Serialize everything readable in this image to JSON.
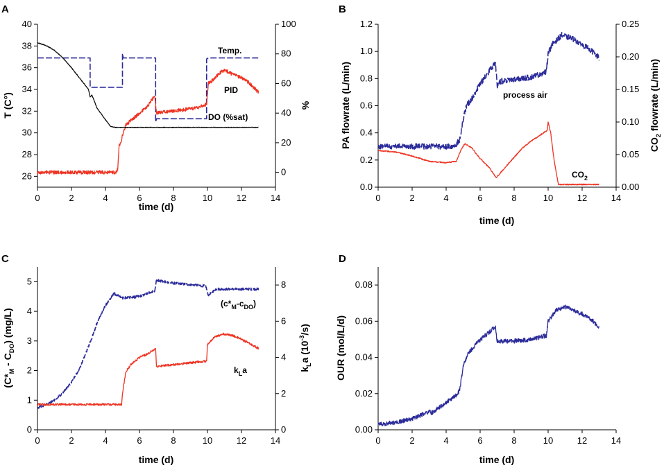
{
  "colors": {
    "blue": "#2b2b9a",
    "red": "#ee3322",
    "black": "#111111",
    "axis": "#000000"
  },
  "chart_data": [
    {
      "panel": "A",
      "type": "line",
      "xlabel": "time (d)",
      "ylabel_left": "T (C°)",
      "ylabel_right": "%",
      "xlim": [
        0,
        14
      ],
      "xticks": [
        0,
        2,
        4,
        6,
        8,
        10,
        12,
        14
      ],
      "ylim_left": [
        25,
        40
      ],
      "yticks_left": [
        26,
        28,
        30,
        32,
        34,
        36,
        38,
        40
      ],
      "ylim_right": [
        -10,
        100
      ],
      "yticks_right": [
        0,
        20,
        40,
        60,
        80,
        100
      ],
      "annotations": {
        "temp": "Temp.",
        "pid": "PID",
        "do_main": "DO (%sat)"
      },
      "series": [
        {
          "name": "Temp.",
          "axis": "left",
          "style": "dashed",
          "color": "blue",
          "points": [
            [
              0,
              36.9
            ],
            [
              3.1,
              36.9
            ],
            [
              3.1,
              34.2
            ],
            [
              5.0,
              34.2
            ],
            [
              5.0,
              37.3
            ],
            [
              5.05,
              36.9
            ],
            [
              6.95,
              36.9
            ],
            [
              6.95,
              31.0
            ],
            [
              7.0,
              31.3
            ],
            [
              9.95,
              31.3
            ],
            [
              9.95,
              36.8
            ],
            [
              10.05,
              36.9
            ],
            [
              13,
              36.9
            ]
          ]
        },
        {
          "name": "PID",
          "axis": "right",
          "style": "solid",
          "color": "red",
          "noise": 1.2,
          "points": [
            [
              0,
              0
            ],
            [
              4.6,
              0
            ],
            [
              4.72,
              2
            ],
            [
              4.8,
              18
            ],
            [
              4.9,
              20
            ],
            [
              5.0,
              25
            ],
            [
              5.2,
              32
            ],
            [
              5.5,
              35
            ],
            [
              6.0,
              40
            ],
            [
              6.5,
              45
            ],
            [
              6.9,
              52
            ],
            [
              7.0,
              40
            ],
            [
              7.5,
              41
            ],
            [
              8.5,
              42
            ],
            [
              9.5,
              44
            ],
            [
              9.95,
              46
            ],
            [
              10.05,
              60
            ],
            [
              10.3,
              62
            ],
            [
              10.7,
              67
            ],
            [
              11.0,
              69
            ],
            [
              11.5,
              66
            ],
            [
              12.0,
              64
            ],
            [
              12.5,
              60
            ],
            [
              13,
              54
            ]
          ]
        },
        {
          "name": "DO (%sat)",
          "axis": "left",
          "style": "solid",
          "color": "black",
          "noise": 0.03,
          "points": [
            [
              0,
              38.3
            ],
            [
              0.5,
              38.05
            ],
            [
              1.0,
              37.6
            ],
            [
              1.5,
              36.9
            ],
            [
              2.0,
              36.0
            ],
            [
              2.5,
              35.0
            ],
            [
              3.0,
              34.0
            ],
            [
              3.1,
              33.3
            ],
            [
              3.2,
              33.5
            ],
            [
              3.5,
              32.3
            ],
            [
              4.0,
              31.2
            ],
            [
              4.3,
              30.6
            ],
            [
              4.6,
              30.5
            ],
            [
              13,
              30.5
            ]
          ]
        }
      ]
    },
    {
      "panel": "B",
      "type": "line",
      "xlabel": "time (d)",
      "ylabel_left": "PA flowrate (L/min)",
      "ylabel_right_main": "CO",
      "ylabel_right_sub": "2",
      "ylabel_right_tail": " flowrate (L/min)",
      "xlim": [
        0,
        14
      ],
      "xticks": [
        0,
        2,
        4,
        6,
        8,
        10,
        12,
        14
      ],
      "ylim_left": [
        0,
        1.2
      ],
      "yticks_left": [
        "0.0",
        "0.2",
        "0.4",
        "0.6",
        "0.8",
        "1.0",
        "1.2"
      ],
      "ylim_right": [
        0,
        0.25
      ],
      "yticks_right": [
        "0.00",
        "0.05",
        "0.10",
        "0.15",
        "0.20",
        "0.25"
      ],
      "annotations": {
        "process_air": "process air",
        "co2_main": "CO",
        "co2_sub": "2"
      },
      "series": [
        {
          "name": "process air",
          "axis": "left",
          "style": "dashed",
          "color": "blue",
          "noise": 0.02,
          "points": [
            [
              0,
              0.3
            ],
            [
              4.5,
              0.3
            ],
            [
              4.8,
              0.35
            ],
            [
              5.0,
              0.5
            ],
            [
              5.2,
              0.6
            ],
            [
              5.5,
              0.65
            ],
            [
              6.0,
              0.76
            ],
            [
              6.5,
              0.85
            ],
            [
              6.9,
              0.92
            ],
            [
              7.0,
              0.74
            ],
            [
              7.2,
              0.78
            ],
            [
              8,
              0.79
            ],
            [
              9,
              0.81
            ],
            [
              9.9,
              0.85
            ],
            [
              10.0,
              0.99
            ],
            [
              10.3,
              1.06
            ],
            [
              10.8,
              1.12
            ],
            [
              11.5,
              1.09
            ],
            [
              12.0,
              1.05
            ],
            [
              12.5,
              1.01
            ],
            [
              13,
              0.95
            ]
          ]
        },
        {
          "name": "CO2",
          "axis": "left",
          "style": "solid",
          "color": "red",
          "noise": 0.004,
          "points": [
            [
              0,
              0.27
            ],
            [
              1,
              0.26
            ],
            [
              2,
              0.23
            ],
            [
              3,
              0.19
            ],
            [
              4,
              0.18
            ],
            [
              4.6,
              0.19
            ],
            [
              4.9,
              0.28
            ],
            [
              5.1,
              0.32
            ],
            [
              5.5,
              0.29
            ],
            [
              6,
              0.21
            ],
            [
              6.5,
              0.15
            ],
            [
              6.95,
              0.07
            ],
            [
              7.5,
              0.15
            ],
            [
              8,
              0.22
            ],
            [
              8.5,
              0.29
            ],
            [
              9,
              0.34
            ],
            [
              9.5,
              0.38
            ],
            [
              9.95,
              0.42
            ],
            [
              10.0,
              0.48
            ],
            [
              10.15,
              0.4
            ],
            [
              10.35,
              0.2
            ],
            [
              10.6,
              0.02
            ],
            [
              13,
              0.02
            ]
          ]
        }
      ]
    },
    {
      "panel": "C",
      "type": "line",
      "xlabel": "time (d)",
      "ylabel_left": "(C*M - CDO) (mg/L)",
      "ylabel_right": "kLa (10-3/s)",
      "xlim": [
        0,
        14
      ],
      "xticks": [
        0,
        2,
        4,
        6,
        8,
        10,
        12,
        14
      ],
      "ylim_left": [
        0,
        5.5
      ],
      "yticks_left": [
        0,
        1,
        2,
        3,
        4,
        5
      ],
      "ylim_right": [
        0,
        9.0
      ],
      "yticks_right": [
        0,
        2,
        4,
        6,
        8
      ],
      "annotations": {
        "cm_cdo": "(c*M-cDO)",
        "kla": "kLa"
      },
      "series": [
        {
          "name": "(c*M-cDO)",
          "axis": "left",
          "style": "dashed",
          "color": "blue",
          "noise": 0.04,
          "points": [
            [
              0,
              0.75
            ],
            [
              0.5,
              0.85
            ],
            [
              1,
              1.0
            ],
            [
              1.5,
              1.25
            ],
            [
              2,
              1.6
            ],
            [
              2.5,
              2.1
            ],
            [
              3,
              2.8
            ],
            [
              3.2,
              3.1
            ],
            [
              3.5,
              3.6
            ],
            [
              4,
              4.2
            ],
            [
              4.5,
              4.6
            ],
            [
              5,
              4.45
            ],
            [
              6,
              4.5
            ],
            [
              6.9,
              4.7
            ],
            [
              7.0,
              5.05
            ],
            [
              8,
              4.95
            ],
            [
              9,
              4.9
            ],
            [
              9.9,
              4.85
            ],
            [
              10.05,
              4.55
            ],
            [
              10.5,
              4.75
            ],
            [
              13,
              4.75
            ]
          ]
        },
        {
          "name": "kLa",
          "axis": "right",
          "style": "solid",
          "color": "red",
          "noise": 0.06,
          "points": [
            [
              0,
              1.4
            ],
            [
              3,
              1.4
            ],
            [
              4.95,
              1.4
            ],
            [
              5.0,
              2.0
            ],
            [
              5.2,
              3.2
            ],
            [
              5.5,
              3.6
            ],
            [
              6,
              4.0
            ],
            [
              6.5,
              4.2
            ],
            [
              6.95,
              4.5
            ],
            [
              7.0,
              3.5
            ],
            [
              8,
              3.6
            ],
            [
              9,
              3.7
            ],
            [
              9.95,
              3.8
            ],
            [
              10.0,
              4.7
            ],
            [
              10.4,
              5.1
            ],
            [
              10.9,
              5.3
            ],
            [
              11.5,
              5.2
            ],
            [
              12,
              5.0
            ],
            [
              13,
              4.5
            ]
          ]
        }
      ]
    },
    {
      "panel": "D",
      "type": "line",
      "xlabel": "time (d)",
      "ylabel_left": "OUR (mol/L/d)",
      "xlim": [
        0,
        14
      ],
      "xticks": [
        0,
        2,
        4,
        6,
        8,
        10,
        12,
        14
      ],
      "ylim_left": [
        0,
        0.09
      ],
      "yticks_left": [
        "0.00",
        "0.02",
        "0.04",
        "0.06",
        "0.08"
      ],
      "series": [
        {
          "name": "OUR",
          "axis": "left",
          "style": "solid",
          "color": "blue",
          "noise": 0.0012,
          "points": [
            [
              0,
              0.003
            ],
            [
              1,
              0.004
            ],
            [
              2,
              0.006
            ],
            [
              3,
              0.01
            ],
            [
              3.05,
              0.011
            ],
            [
              3.1,
              0.009
            ],
            [
              4,
              0.015
            ],
            [
              4.6,
              0.019
            ],
            [
              4.8,
              0.022
            ],
            [
              5.0,
              0.035
            ],
            [
              5.3,
              0.042
            ],
            [
              5.8,
              0.048
            ],
            [
              6.3,
              0.052
            ],
            [
              6.9,
              0.057
            ],
            [
              7.0,
              0.049
            ],
            [
              8,
              0.049
            ],
            [
              9,
              0.05
            ],
            [
              9.9,
              0.052
            ],
            [
              10.0,
              0.06
            ],
            [
              10.5,
              0.066
            ],
            [
              11,
              0.068
            ],
            [
              11.5,
              0.066
            ],
            [
              12,
              0.064
            ],
            [
              12.5,
              0.061
            ],
            [
              13,
              0.057
            ]
          ]
        }
      ]
    }
  ]
}
